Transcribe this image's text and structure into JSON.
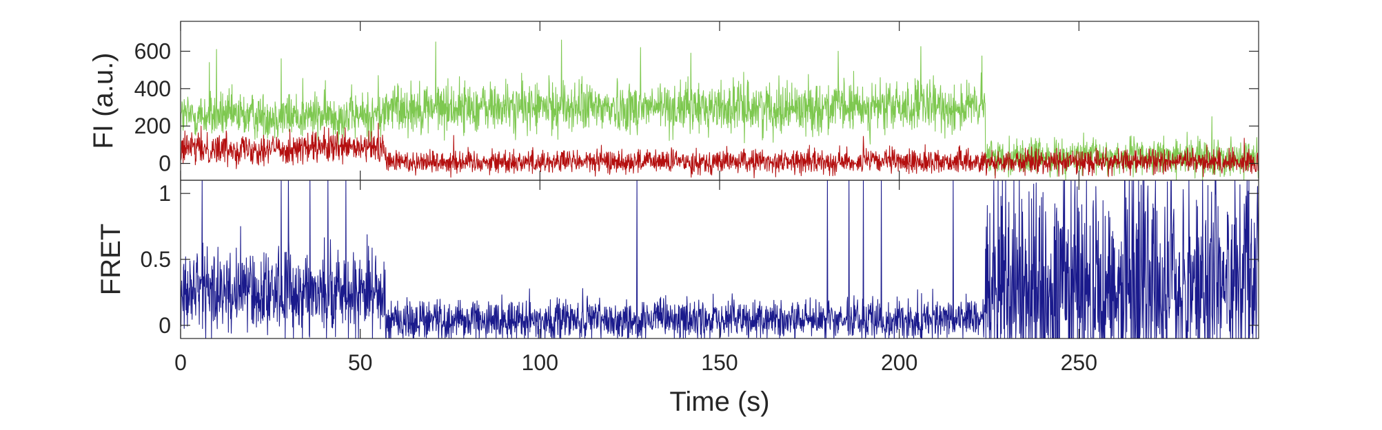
{
  "chart_data": [
    {
      "type": "line",
      "panel": "top",
      "title": "",
      "xlabel": "",
      "ylabel": "FI (a.u.)",
      "xlim": [
        0,
        300
      ],
      "ylim": [
        -90,
        760
      ],
      "xticks": [
        0,
        50,
        100,
        150,
        200,
        250
      ],
      "yticks": [
        0,
        200,
        400,
        600
      ],
      "ytick_labels": [
        "0",
        "200",
        "400",
        "600"
      ],
      "grid": false,
      "legend": "none",
      "sampling_interval_s": 0.1,
      "series": [
        {
          "color": "#7ec850",
          "segments": [
            {
              "t_start": 0,
              "t_end": 57,
              "mean": 255,
              "noise": 62
            },
            {
              "t_start": 57,
              "t_end": 224,
              "mean": 300,
              "noise": 68
            },
            {
              "t_start": 224,
              "t_end": 300,
              "mean": 35,
              "noise": 48
            }
          ],
          "spikes": [
            [
              8,
              540
            ],
            [
              10,
              610
            ],
            [
              28,
              560
            ],
            [
              34,
              455
            ],
            [
              55,
              470
            ],
            [
              71,
              650
            ],
            [
              106,
              660
            ],
            [
              128,
              620
            ],
            [
              142,
              590
            ],
            [
              183,
              600
            ],
            [
              206,
              625
            ],
            [
              223,
              575
            ],
            [
              287,
              250
            ]
          ]
        },
        {
          "color": "#b40f0f",
          "segments": [
            {
              "t_start": 0,
              "t_end": 57,
              "mean": 80,
              "noise": 42
            },
            {
              "t_start": 57,
              "t_end": 224,
              "mean": 10,
              "noise": 32
            },
            {
              "t_start": 224,
              "t_end": 300,
              "mean": 10,
              "noise": 32
            }
          ],
          "spikes": [
            [
              40,
              195
            ],
            [
              55,
              215
            ],
            [
              76,
              150
            ],
            [
              190,
              145
            ],
            [
              296,
              135
            ]
          ]
        }
      ]
    },
    {
      "type": "line",
      "panel": "bottom",
      "title": "",
      "xlabel": "Time (s)",
      "ylabel": "FRET",
      "xlim": [
        0,
        300
      ],
      "ylim": [
        -0.1,
        1.1
      ],
      "xticks": [
        0,
        50,
        100,
        150,
        200,
        250
      ],
      "xtick_labels": [
        "0",
        "50",
        "100",
        "150",
        "200",
        "250"
      ],
      "yticks": [
        0,
        0.5,
        1
      ],
      "ytick_labels": [
        "0",
        "0.5",
        "1"
      ],
      "grid": false,
      "legend": "none",
      "sampling_interval_s": 0.1,
      "series": [
        {
          "color": "#1a1a8c",
          "segments": [
            {
              "t_start": 0,
              "t_end": 57,
              "mean": 0.26,
              "noise": 0.17
            },
            {
              "t_start": 57,
              "t_end": 224,
              "mean": 0.04,
              "noise": 0.08
            },
            {
              "t_start": 224,
              "t_end": 300,
              "mean": 0.32,
              "noise": 0.45
            }
          ],
          "spikes": [
            [
              6,
              1.1
            ],
            [
              28,
              1.1
            ],
            [
              30,
              1.1
            ],
            [
              36,
              1.1
            ],
            [
              41,
              1.1
            ],
            [
              46,
              1.1
            ],
            [
              127,
              1.1
            ],
            [
              180,
              1.1
            ],
            [
              186,
              1.1
            ],
            [
              190,
              1.1
            ],
            [
              195,
              1.1
            ],
            [
              215,
              1.1
            ]
          ]
        }
      ]
    }
  ]
}
